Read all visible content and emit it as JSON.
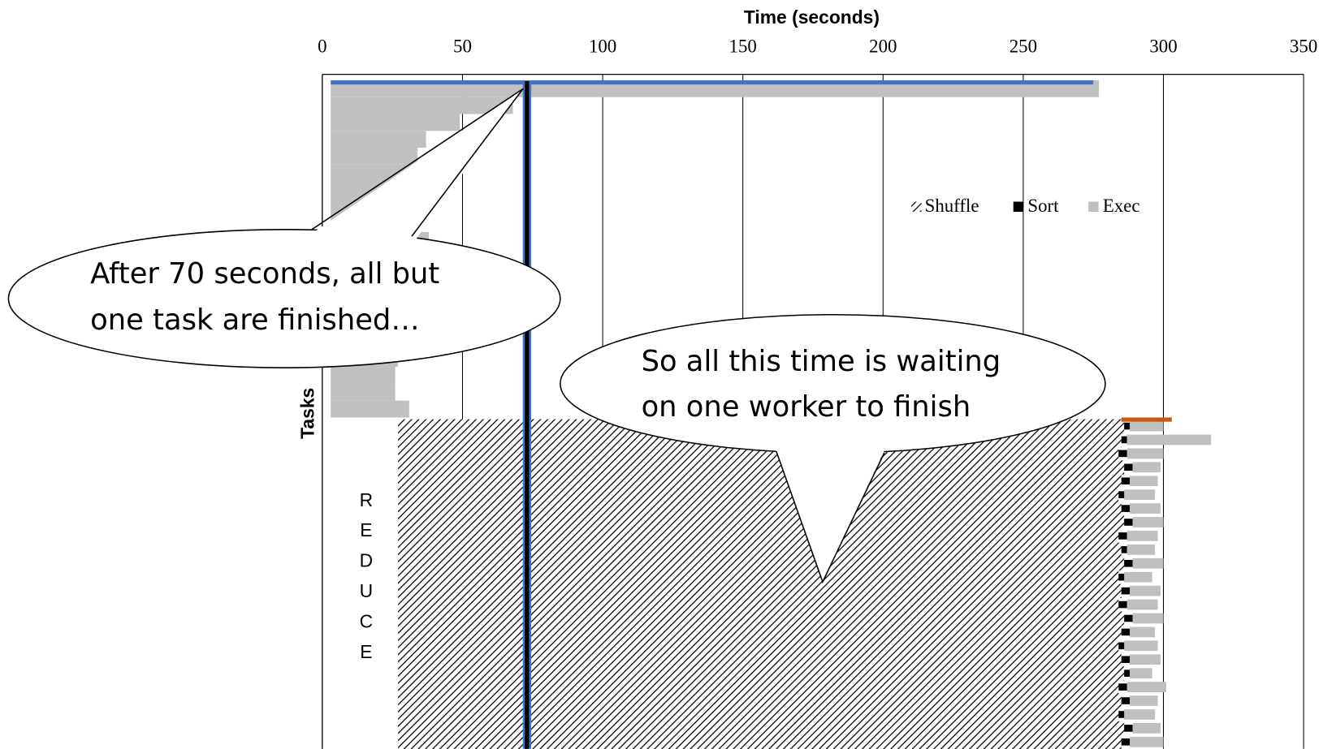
{
  "chart_data": {
    "type": "timeline",
    "title": "Time (seconds)",
    "y_label": "Tasks",
    "reduce_label": "REDUCE",
    "xlim": [
      0,
      350
    ],
    "xticks": [
      0,
      50,
      100,
      150,
      200,
      250,
      300,
      350
    ],
    "grid": true,
    "legend": [
      "Shuffle",
      "Sort",
      "Exec"
    ],
    "colors": {
      "exec": "#c0c0c0",
      "sort": "#000000",
      "shuffle": "#000000"
    },
    "map_tasks": {
      "start": 3,
      "end": [
        277,
        68,
        49,
        37,
        34,
        44,
        31,
        29,
        29,
        38,
        28,
        28,
        27,
        27,
        27,
        27,
        27,
        26,
        26,
        31
      ]
    },
    "straggler_map": {
      "start": 3,
      "end": 275,
      "color": "#4472c4"
    },
    "reduce_tasks": {
      "shuffle_start": 27,
      "shuffle_end": [
        286,
        285,
        284,
        286,
        285,
        284,
        285,
        286,
        284,
        285,
        286,
        284,
        285,
        284,
        286,
        285,
        284,
        285,
        286,
        284,
        285,
        284,
        286,
        285
      ],
      "sort_end": [
        288,
        287,
        287,
        289,
        288,
        286,
        288,
        289,
        287,
        287,
        289,
        286,
        288,
        287,
        289,
        288,
        286,
        288,
        288,
        287,
        288,
        286,
        289,
        288
      ],
      "exec_end": [
        300,
        317,
        300,
        299,
        298,
        297,
        299,
        300,
        298,
        297,
        300,
        296,
        299,
        298,
        300,
        297,
        298,
        299,
        296,
        301,
        298,
        297,
        299,
        300
      ]
    },
    "straggler_reduce": {
      "start": 285,
      "end": 303,
      "color": "#c55a11"
    },
    "cutoff": {
      "value": 73,
      "color": "#4472c4"
    },
    "callouts": [
      {
        "lines": [
          "After 70 seconds, all but",
          "one task are finished…"
        ]
      },
      {
        "lines": [
          "So all this time is waiting",
          "on one worker to finish"
        ]
      }
    ]
  }
}
